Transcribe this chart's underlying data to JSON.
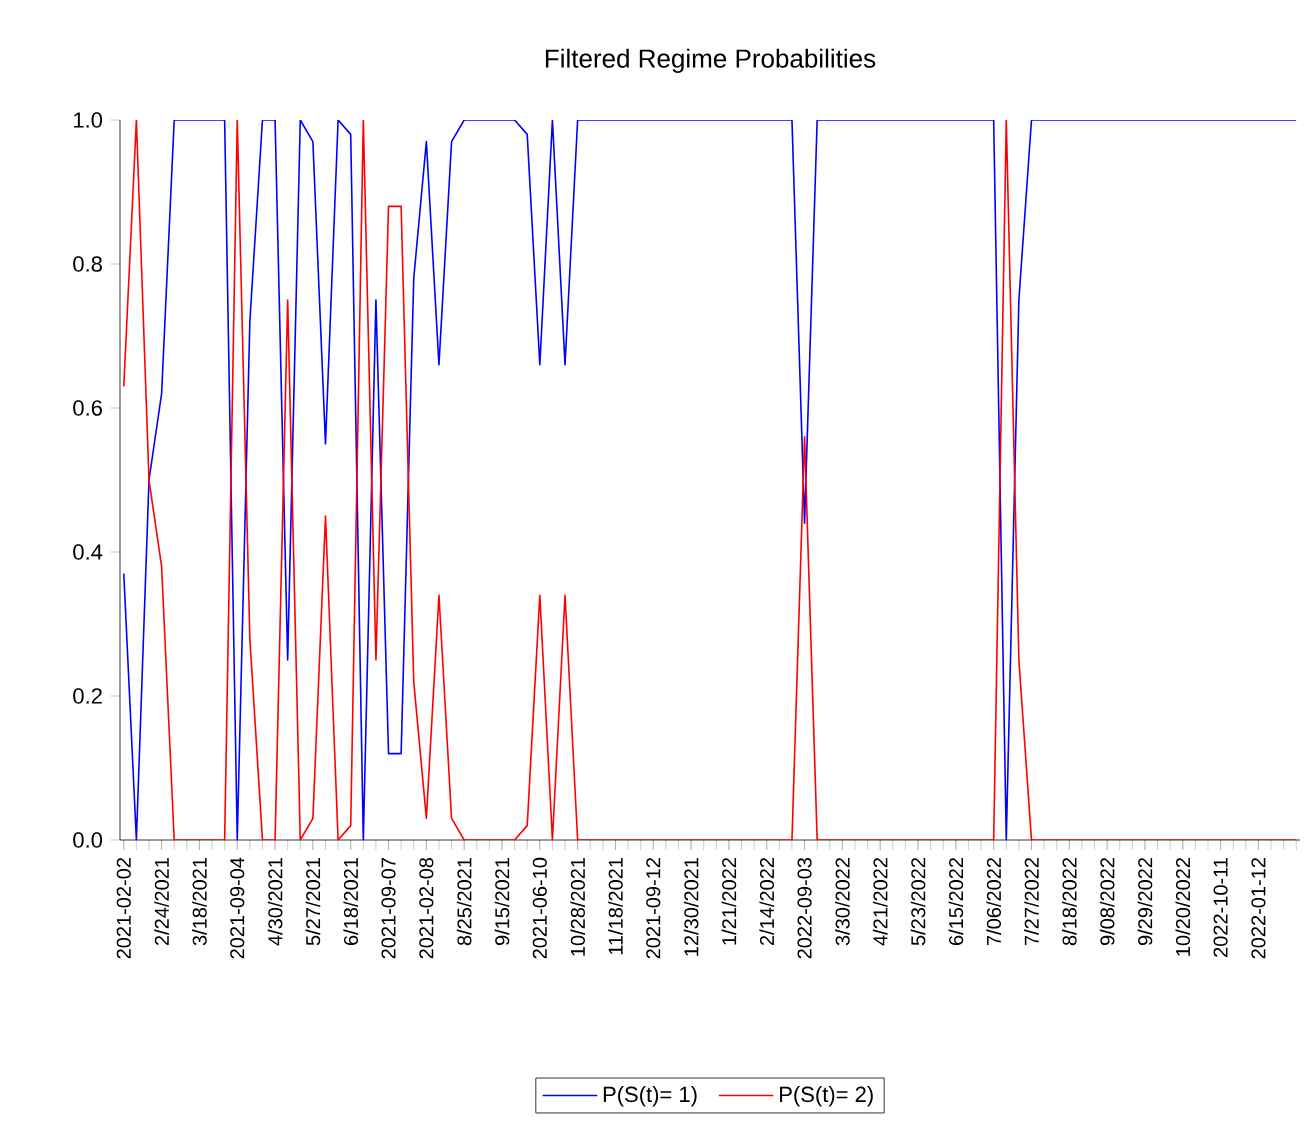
{
  "chart_data": {
    "type": "line",
    "title": "Filtered Regime Probabilities",
    "categories": [
      "2021-02-02",
      null,
      null,
      "2/24/2021",
      null,
      null,
      "3/18/2021",
      null,
      null,
      "2021-09-04",
      null,
      null,
      "4/30/2021",
      null,
      null,
      "5/27/2021",
      null,
      null,
      "6/18/2021",
      null,
      null,
      "2021-09-07",
      null,
      null,
      "2021-02-08",
      null,
      null,
      "8/25/2021",
      null,
      null,
      "9/15/2021",
      null,
      null,
      "2021-06-10",
      null,
      null,
      "10/28/2021",
      null,
      null,
      "11/18/2021",
      null,
      null,
      "2021-09-12",
      null,
      null,
      "12/30/2021",
      null,
      null,
      "1/21/2022",
      null,
      null,
      "2/14/2022",
      null,
      null,
      "2022-09-03",
      null,
      null,
      "3/30/2022",
      null,
      null,
      "4/21/2022",
      null,
      null,
      "5/23/2022",
      null,
      null,
      "6/15/2022",
      null,
      null,
      "7/06/2022",
      null,
      null,
      "7/27/2022",
      null,
      null,
      "8/18/2022",
      null,
      null,
      "9/08/2022",
      null,
      null,
      "9/29/2022",
      null,
      null,
      "10/20/2022",
      null,
      null,
      "2022-10-11",
      null,
      null,
      "2022-01-12",
      null,
      null,
      null
    ],
    "series": [
      {
        "name": "P(S(t)= 1)",
        "color": "#0000ff",
        "values": [
          0.37,
          0,
          0.5,
          0.62,
          1,
          1,
          1,
          1,
          1,
          0,
          0.72,
          1,
          1,
          0.25,
          1,
          0.97,
          0.55,
          1,
          0.98,
          0,
          0.75,
          0.12,
          0.12,
          0.78,
          0.97,
          0.66,
          0.97,
          1,
          1,
          1,
          1,
          1,
          0.98,
          0.66,
          1,
          0.66,
          1,
          1,
          1,
          1,
          1,
          1,
          1,
          1,
          1,
          1,
          1,
          1,
          1,
          1,
          1,
          1,
          1,
          1,
          0.44,
          1,
          1,
          1,
          1,
          1,
          1,
          1,
          1,
          1,
          1,
          1,
          1,
          1,
          1,
          1,
          0,
          0.75,
          1,
          1,
          1,
          1,
          1,
          1,
          1,
          1,
          1,
          1,
          1,
          1,
          1,
          1,
          1,
          1,
          1,
          1,
          1,
          1,
          1,
          1
        ]
      },
      {
        "name": "P(S(t)= 2)",
        "color": "#ff0000",
        "values": [
          0.63,
          1,
          0.5,
          0.38,
          0,
          0,
          0,
          0,
          0,
          1,
          0.28,
          0,
          0,
          0.75,
          0,
          0.03,
          0.45,
          0,
          0.02,
          1,
          0.25,
          0.88,
          0.88,
          0.22,
          0.03,
          0.34,
          0.03,
          0,
          0,
          0,
          0,
          0,
          0.02,
          0.34,
          0,
          0.34,
          0,
          0,
          0,
          0,
          0,
          0,
          0,
          0,
          0,
          0,
          0,
          0,
          0,
          0,
          0,
          0,
          0,
          0,
          0.56,
          0,
          0,
          0,
          0,
          0,
          0,
          0,
          0,
          0,
          0,
          0,
          0,
          0,
          0,
          0,
          1,
          0.25,
          0,
          0,
          0,
          0,
          0,
          0,
          0,
          0,
          0,
          0,
          0,
          0,
          0,
          0,
          0,
          0,
          0,
          0,
          0,
          0,
          0,
          0
        ]
      }
    ],
    "ylim": [
      0,
      1
    ],
    "yticks": [
      {
        "value": 0,
        "label": "0.0"
      },
      {
        "value": 0.2,
        "label": "0.2"
      },
      {
        "value": 0.4,
        "label": "0.4"
      },
      {
        "value": 0.6,
        "label": "0.6"
      },
      {
        "value": 0.8,
        "label": "0.8"
      },
      {
        "value": 1,
        "label": "1.0"
      }
    ],
    "legend": "bottom"
  }
}
